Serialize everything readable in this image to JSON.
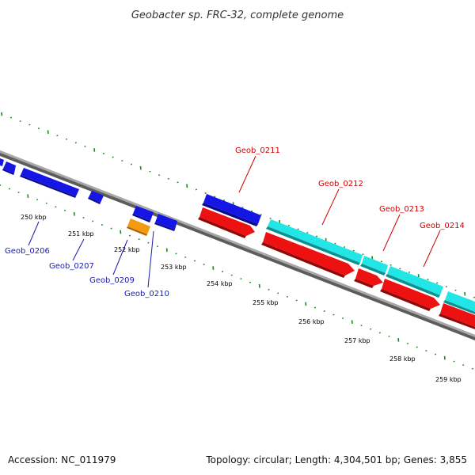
{
  "title": "Geobacter sp. FRC-32, complete genome",
  "footer": {
    "accession": "Accession: NC_011979",
    "topology": "Topology: circular; Length: 4,304,501 bp; Genes: 3,855"
  },
  "colors": {
    "backbone": "#8a8a8a",
    "ticks": "#1a8a1a",
    "label_red": "#d40000",
    "label_blue": "#1a1ab0",
    "gene_blue": "#1515e6",
    "gene_red": "#ee1111",
    "gene_cyan": "#22e6e6",
    "gene_orange": "#f59a10"
  },
  "scale_labels": [
    {
      "text": "250 kbp"
    },
    {
      "text": "251 kbp"
    },
    {
      "text": "252 kbp"
    },
    {
      "text": "253 kbp"
    },
    {
      "text": "254 kbp"
    },
    {
      "text": "255 kbp"
    },
    {
      "text": "256 kbp"
    },
    {
      "text": "257 kbp"
    },
    {
      "text": "258 kbp"
    },
    {
      "text": "259 kbp"
    }
  ],
  "gene_labels": [
    {
      "text": "Geob_0211",
      "color": "red"
    },
    {
      "text": "Geob_0212",
      "color": "red"
    },
    {
      "text": "Geob_0213",
      "color": "red"
    },
    {
      "text": "Geob_0214",
      "color": "red"
    },
    {
      "text": "Geob_0206",
      "color": "blue"
    },
    {
      "text": "Geob_0207",
      "color": "blue"
    },
    {
      "text": "Geob_0209",
      "color": "blue"
    },
    {
      "text": "Geob_0210",
      "color": "blue"
    }
  ]
}
